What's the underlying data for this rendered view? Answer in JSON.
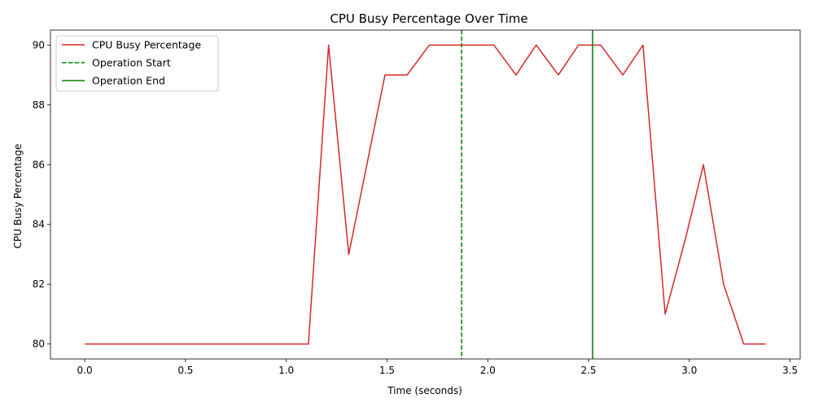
{
  "chart_data": {
    "type": "line",
    "title": "CPU Busy Percentage Over Time",
    "xlabel": "Time (seconds)",
    "ylabel": "CPU Busy Percentage",
    "xlim": [
      -0.17,
      3.55
    ],
    "ylim": [
      79.5,
      90.5
    ],
    "xticks": [
      0.0,
      0.5,
      1.0,
      1.5,
      2.0,
      2.5,
      3.0,
      3.5
    ],
    "xtick_labels": [
      "0.0",
      "0.5",
      "1.0",
      "1.5",
      "2.0",
      "2.5",
      "3.0",
      "3.5"
    ],
    "yticks": [
      80,
      82,
      84,
      86,
      88,
      90
    ],
    "ytick_labels": [
      "80",
      "82",
      "84",
      "86",
      "88",
      "90"
    ],
    "grid": false,
    "legend_position": "top-left",
    "series": [
      {
        "name": "CPU Busy Percentage",
        "color": "#d62728",
        "style": "solid",
        "x": [
          0.0,
          0.1,
          0.2,
          0.3,
          0.4,
          0.5,
          0.6,
          0.7,
          0.8,
          0.9,
          1.0,
          1.11,
          1.21,
          1.31,
          1.4,
          1.49,
          1.6,
          1.71,
          1.82,
          1.92,
          2.03,
          2.14,
          2.24,
          2.35,
          2.45,
          2.56,
          2.67,
          2.77,
          2.88,
          2.98,
          3.07,
          3.17,
          3.27,
          3.38
        ],
        "y": [
          80,
          80,
          80,
          80,
          80,
          80,
          80,
          80,
          80,
          80,
          80,
          80,
          90,
          83,
          86,
          89,
          89,
          90,
          90,
          90,
          90,
          89,
          90,
          89,
          90,
          90,
          89,
          90,
          81,
          83.5,
          86,
          82,
          80,
          80
        ]
      }
    ],
    "vlines": [
      {
        "name": "Operation Start",
        "x": 1.87,
        "color": "#008000",
        "style": "dashed"
      },
      {
        "name": "Operation End",
        "x": 2.52,
        "color": "#008000",
        "style": "solid"
      }
    ]
  }
}
